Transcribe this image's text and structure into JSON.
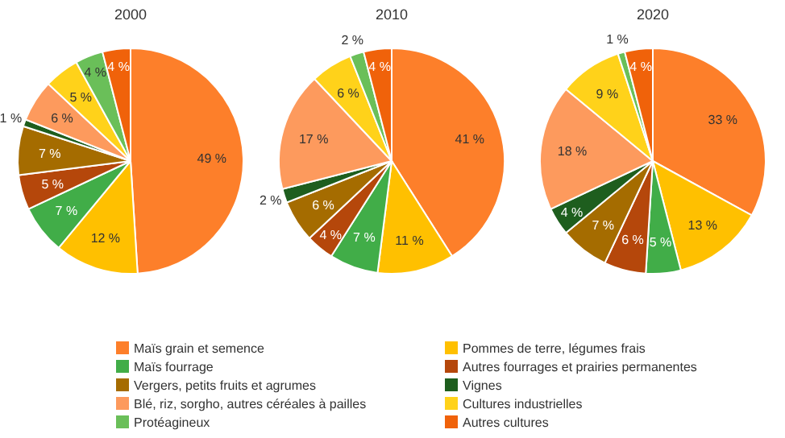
{
  "chart_data": [
    {
      "type": "pie",
      "title": "2000",
      "categories": [
        "Maïs grain et semence",
        "Pommes de terre, légumes frais",
        "Maïs fourrage",
        "Autres fourrages et prairies permanentes",
        "Vergers, petits fruits et agrumes",
        "Vignes",
        "Blé, riz, sorgho, autres céréales à pailles",
        "Cultures industrielles",
        "Protéagineux",
        "Autres cultures"
      ],
      "values": [
        49,
        12,
        7,
        5,
        7,
        1,
        6,
        5,
        4,
        4
      ],
      "value_labels": [
        "49 %",
        "12 %",
        "7 %",
        "5 %",
        "7 %",
        "1 %",
        "6 %",
        "5 %",
        "4 %",
        "4 %"
      ],
      "colors": [
        "#fd7f2a",
        "#ffc000",
        "#41ad48",
        "#b5470b",
        "#a56c00",
        "#1e5e1e",
        "#fd9a5d",
        "#ffd21a",
        "#6abf59",
        "#f0620a"
      ],
      "legend": "bottom"
    },
    {
      "type": "pie",
      "title": "2010",
      "values": [
        41,
        11,
        7,
        4,
        6,
        2,
        17,
        6,
        2,
        4
      ],
      "value_labels": [
        "41 %",
        "11 %",
        "7 %",
        "4 %",
        "6 %",
        "2 %",
        "17 %",
        "6 %",
        "2 %",
        "4 %"
      ],
      "colors": [
        "#fd7f2a",
        "#ffc000",
        "#41ad48",
        "#b5470b",
        "#a56c00",
        "#1e5e1e",
        "#fd9a5d",
        "#ffd21a",
        "#6abf59",
        "#f0620a"
      ]
    },
    {
      "type": "pie",
      "title": "2020",
      "values": [
        33,
        13,
        5,
        6,
        7,
        4,
        18,
        9,
        1,
        4
      ],
      "value_labels": [
        "33 %",
        "13 %",
        "5 %",
        "6 %",
        "7 %",
        "4 %",
        "18 %",
        "9 %",
        "1 %",
        "4 %"
      ],
      "colors": [
        "#fd7f2a",
        "#ffc000",
        "#41ad48",
        "#b5470b",
        "#a56c00",
        "#1e5e1e",
        "#fd9a5d",
        "#ffd21a",
        "#6abf59",
        "#f0620a"
      ]
    }
  ]
}
